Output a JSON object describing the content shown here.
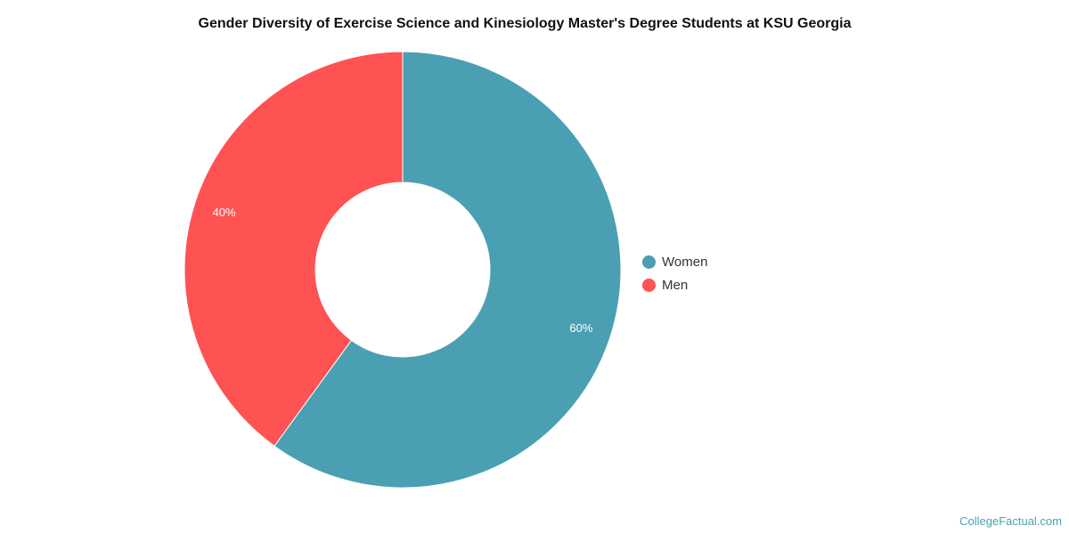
{
  "chart_data": {
    "type": "pie",
    "donut": true,
    "title": "Gender Diversity of Exercise Science and Kinesiology Master's Degree Students at KSU Georgia",
    "categories": [
      "Women",
      "Men"
    ],
    "values": [
      60,
      40
    ],
    "data_labels": [
      "60%",
      "40%"
    ],
    "colors": [
      "#4aa0b2",
      "#ff5252"
    ],
    "legend_placement": "right"
  },
  "watermark": "CollegeFactual.com"
}
